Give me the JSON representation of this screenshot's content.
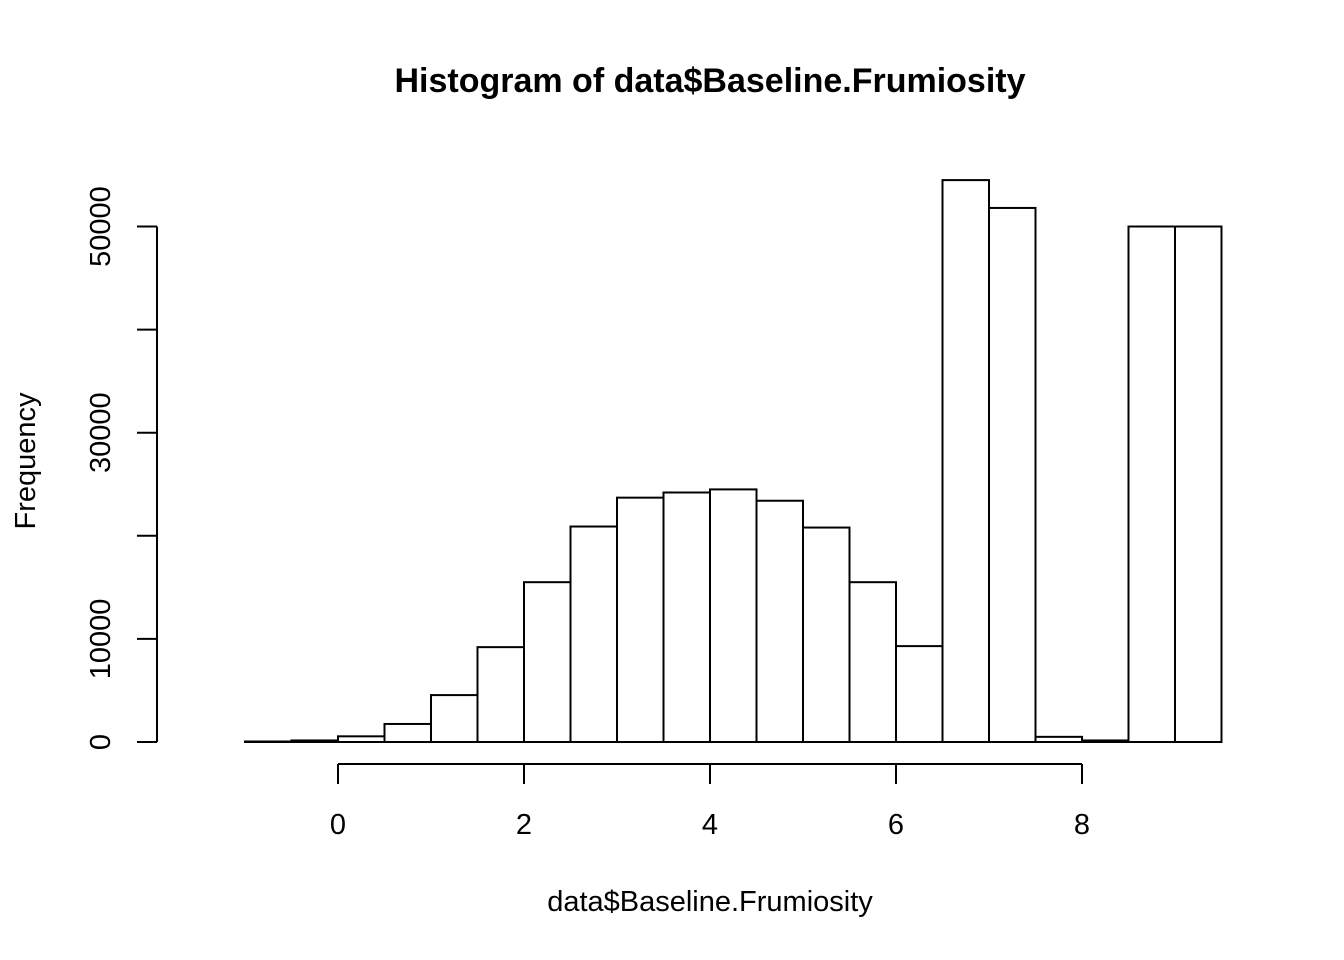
{
  "chart_data": {
    "type": "bar",
    "title": "Histogram of data$Baseline.Frumiosity",
    "xlabel": "data$Baseline.Frumiosity",
    "ylabel": "Frequency",
    "xlim": [
      -1.5,
      9.5
    ],
    "ylim": [
      0,
      56000
    ],
    "x_ticks": [
      0,
      2,
      4,
      6,
      8
    ],
    "y_ticks": [
      0,
      10000,
      20000,
      30000,
      40000,
      50000
    ],
    "y_tick_labels": [
      "0",
      "10000",
      "",
      "30000",
      "",
      "50000"
    ],
    "bin_width": 0.5,
    "bins": [
      {
        "start": -1.0,
        "end": -0.5,
        "count": 50
      },
      {
        "start": -0.5,
        "end": 0.0,
        "count": 150
      },
      {
        "start": 0.0,
        "end": 0.5,
        "count": 550
      },
      {
        "start": 0.5,
        "end": 1.0,
        "count": 1750
      },
      {
        "start": 1.0,
        "end": 1.5,
        "count": 4550
      },
      {
        "start": 1.5,
        "end": 2.0,
        "count": 9200
      },
      {
        "start": 2.0,
        "end": 2.5,
        "count": 15500
      },
      {
        "start": 2.5,
        "end": 3.0,
        "count": 20900
      },
      {
        "start": 3.0,
        "end": 3.5,
        "count": 23700
      },
      {
        "start": 3.5,
        "end": 4.0,
        "count": 24200
      },
      {
        "start": 4.0,
        "end": 4.5,
        "count": 24500
      },
      {
        "start": 4.5,
        "end": 5.0,
        "count": 23400
      },
      {
        "start": 5.0,
        "end": 5.5,
        "count": 20800
      },
      {
        "start": 5.5,
        "end": 6.0,
        "count": 15500
      },
      {
        "start": 6.0,
        "end": 6.5,
        "count": 9300
      },
      {
        "start": 6.5,
        "end": 7.0,
        "count": 54500
      },
      {
        "start": 7.0,
        "end": 7.5,
        "count": 51800
      },
      {
        "start": 7.5,
        "end": 8.0,
        "count": 500
      },
      {
        "start": 8.0,
        "end": 8.5,
        "count": 150
      },
      {
        "start": 8.5,
        "end": 9.0,
        "count": 50000
      },
      {
        "start": 9.0,
        "end": 9.5,
        "count": 50000
      }
    ],
    "grid": false,
    "legend": "none"
  }
}
